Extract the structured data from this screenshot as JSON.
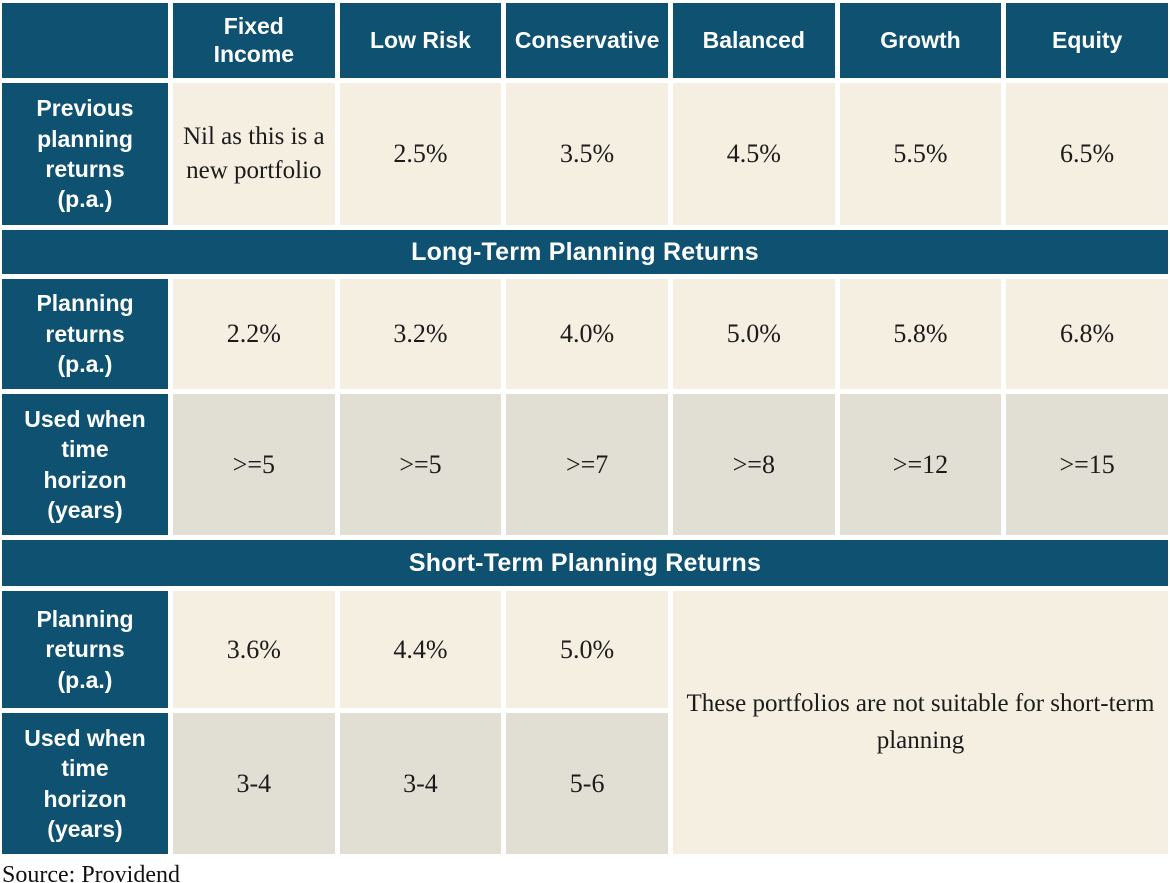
{
  "colors": {
    "header_navy": "#0e5170",
    "cell_cream": "#f5efe2",
    "cell_gray": "#e1ded3",
    "header_text": "#fdfdfd",
    "body_text": "#1b1b1b",
    "gap_white": "#ffffff"
  },
  "header": {
    "corner": "",
    "columns": [
      "Fixed\nIncome",
      "Low Risk",
      "Conservative",
      "Balanced",
      "Growth",
      "Equity"
    ]
  },
  "previous_row": {
    "label": "Previous\nplanning\nreturns\n(p.a.)",
    "values": [
      "Nil as this is a new portfolio",
      "2.5%",
      "3.5%",
      "4.5%",
      "5.5%",
      "6.5%"
    ]
  },
  "long_term": {
    "title": "Long-Term Planning Returns",
    "planning_row": {
      "label": "Planning\nreturns\n(p.a.)",
      "values": [
        "2.2%",
        "3.2%",
        "4.0%",
        "5.0%",
        "5.8%",
        "6.8%"
      ]
    },
    "horizon_row": {
      "label": "Used when\ntime\nhorizon\n(years)",
      "values": [
        ">=5",
        ">=5",
        ">=7",
        ">=8",
        ">=12",
        ">=15"
      ]
    }
  },
  "short_term": {
    "title": "Short-Term Planning Returns",
    "planning_row": {
      "label": "Planning\nreturns\n(p.a.)",
      "values": [
        "3.6%",
        "4.4%",
        "5.0%"
      ]
    },
    "horizon_row": {
      "label": "Used when\ntime\nhorizon\n(years)",
      "values": [
        "3-4",
        "3-4",
        "5-6"
      ]
    },
    "note": "These portfolios are not suitable for short-term planning"
  },
  "footer": {
    "source": "Source: Providend"
  },
  "chart_data": {
    "type": "table",
    "columns": [
      "",
      "Fixed Income",
      "Low Risk",
      "Conservative",
      "Balanced",
      "Growth",
      "Equity"
    ],
    "rows": [
      [
        "Previous planning returns (p.a.)",
        "Nil as this is a new portfolio",
        "2.5%",
        "3.5%",
        "4.5%",
        "5.5%",
        "6.5%"
      ],
      [
        "Long-Term Planning Returns",
        "",
        "",
        "",
        "",
        "",
        ""
      ],
      [
        "Planning returns (p.a.)",
        "2.2%",
        "3.2%",
        "4.0%",
        "5.0%",
        "5.8%",
        "6.8%"
      ],
      [
        "Used when time horizon (years)",
        ">=5",
        ">=5",
        ">=7",
        ">=8",
        ">=12",
        ">=15"
      ],
      [
        "Short-Term Planning Returns",
        "",
        "",
        "",
        "",
        "",
        ""
      ],
      [
        "Planning returns (p.a.)",
        "3.6%",
        "4.4%",
        "5.0%",
        "These portfolios are not suitable for short-term planning",
        "",
        ""
      ],
      [
        "Used when time horizon (years)",
        "3-4",
        "3-4",
        "5-6",
        "",
        "",
        ""
      ]
    ],
    "source": "Source: Providend"
  }
}
